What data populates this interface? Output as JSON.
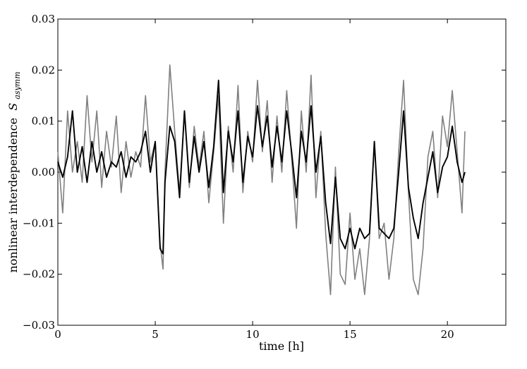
{
  "chart_data": {
    "type": "line",
    "xlabel": "time [h]",
    "ylabel": "nonlinear interdependence",
    "ylabel_symbol": "S",
    "ylabel_subscript": "asymm",
    "xlim": [
      0,
      23
    ],
    "ylim": [
      -0.03,
      0.03
    ],
    "x_ticks": [
      0,
      5,
      10,
      15,
      20
    ],
    "x_tick_labels": [
      "0",
      "5",
      "10",
      "15",
      "20"
    ],
    "y_ticks": [
      -0.03,
      -0.02,
      -0.01,
      0.0,
      0.01,
      0.02,
      0.03
    ],
    "y_tick_labels": [
      "−0.03",
      "−0.02",
      "−0.01",
      "0.00",
      "0.01",
      "0.02",
      "0.03"
    ],
    "grid": false,
    "colors": {
      "series_gray": "#808080",
      "series_black": "#000000",
      "axes": "#000000"
    },
    "series": [
      {
        "color": "#808080",
        "x": [
          0,
          0.25,
          0.5,
          0.75,
          1.0,
          1.25,
          1.5,
          1.75,
          2.0,
          2.25,
          2.5,
          2.75,
          3.0,
          3.25,
          3.5,
          3.75,
          4.0,
          4.25,
          4.5,
          4.75,
          5.0,
          5.25,
          5.4,
          5.5,
          5.75,
          6.0,
          6.25,
          6.5,
          6.75,
          7.0,
          7.25,
          7.5,
          7.75,
          8.0,
          8.25,
          8.5,
          8.75,
          9.0,
          9.25,
          9.5,
          9.75,
          10.0,
          10.25,
          10.5,
          10.75,
          11.0,
          11.25,
          11.5,
          11.75,
          12.0,
          12.25,
          12.5,
          12.75,
          13.0,
          13.25,
          13.5,
          13.75,
          14.0,
          14.25,
          14.5,
          14.75,
          15.0,
          15.25,
          15.5,
          15.75,
          16.0,
          16.25,
          16.5,
          16.75,
          17.0,
          17.25,
          17.5,
          17.75,
          18.0,
          18.25,
          18.5,
          18.75,
          19.0,
          19.25,
          19.5,
          19.75,
          20.0,
          20.25,
          20.5,
          20.75,
          20.9
        ],
        "y": [
          0.004,
          -0.008,
          0.012,
          0.0,
          0.006,
          -0.002,
          0.015,
          0.002,
          0.012,
          -0.003,
          0.008,
          0.001,
          0.011,
          -0.004,
          0.006,
          -0.001,
          0.004,
          0.001,
          0.015,
          0.002,
          0.006,
          -0.014,
          -0.019,
          0.0,
          0.021,
          0.008,
          -0.004,
          0.012,
          -0.003,
          0.009,
          0.001,
          0.008,
          -0.006,
          0.004,
          0.015,
          -0.01,
          0.009,
          0.0,
          0.017,
          -0.004,
          0.008,
          0.002,
          0.018,
          0.004,
          0.014,
          -0.002,
          0.011,
          0.0,
          0.016,
          0.003,
          -0.011,
          0.012,
          0.0,
          0.019,
          -0.005,
          0.008,
          -0.012,
          -0.024,
          0.001,
          -0.02,
          -0.022,
          -0.008,
          -0.021,
          -0.015,
          -0.024,
          -0.013,
          0.006,
          -0.013,
          -0.01,
          -0.021,
          -0.013,
          0.004,
          0.018,
          -0.004,
          -0.021,
          -0.024,
          -0.015,
          0.003,
          0.008,
          -0.005,
          0.011,
          0.005,
          0.016,
          0.004,
          -0.008,
          0.008
        ]
      },
      {
        "color": "#000000",
        "x": [
          0,
          0.25,
          0.5,
          0.75,
          1.0,
          1.25,
          1.5,
          1.75,
          2.0,
          2.25,
          2.5,
          2.75,
          3.0,
          3.25,
          3.5,
          3.75,
          4.0,
          4.25,
          4.5,
          4.75,
          5.0,
          5.25,
          5.4,
          5.5,
          5.75,
          6.0,
          6.25,
          6.5,
          6.75,
          7.0,
          7.25,
          7.5,
          7.75,
          8.0,
          8.25,
          8.5,
          8.75,
          9.0,
          9.25,
          9.5,
          9.75,
          10.0,
          10.25,
          10.5,
          10.75,
          11.0,
          11.25,
          11.5,
          11.75,
          12.0,
          12.25,
          12.5,
          12.75,
          13.0,
          13.25,
          13.5,
          13.75,
          14.0,
          14.25,
          14.5,
          14.75,
          15.0,
          15.25,
          15.5,
          15.75,
          16.0,
          16.25,
          16.5,
          16.75,
          17.0,
          17.25,
          17.5,
          17.75,
          18.0,
          18.25,
          18.5,
          18.75,
          19.0,
          19.25,
          19.5,
          19.75,
          20.0,
          20.25,
          20.5,
          20.75,
          20.9
        ],
        "y": [
          0.002,
          -0.001,
          0.003,
          0.012,
          0.0,
          0.005,
          -0.002,
          0.006,
          0.0,
          0.004,
          -0.001,
          0.002,
          0.001,
          0.004,
          -0.001,
          0.003,
          0.002,
          0.004,
          0.008,
          0.0,
          0.006,
          -0.015,
          -0.016,
          -0.002,
          0.009,
          0.006,
          -0.005,
          0.012,
          -0.002,
          0.007,
          0.0,
          0.006,
          -0.003,
          0.005,
          0.018,
          -0.004,
          0.008,
          0.002,
          0.012,
          -0.002,
          0.007,
          0.003,
          0.013,
          0.005,
          0.011,
          0.001,
          0.009,
          0.002,
          0.012,
          0.004,
          -0.005,
          0.008,
          0.002,
          0.013,
          0.0,
          0.007,
          -0.006,
          -0.014,
          -0.001,
          -0.013,
          -0.015,
          -0.011,
          -0.015,
          -0.011,
          -0.013,
          -0.012,
          0.006,
          -0.011,
          -0.012,
          -0.013,
          -0.011,
          0.0,
          0.012,
          -0.003,
          -0.009,
          -0.013,
          -0.006,
          -0.001,
          0.004,
          -0.004,
          0.001,
          0.003,
          0.009,
          0.002,
          -0.002,
          0.0
        ]
      }
    ]
  }
}
